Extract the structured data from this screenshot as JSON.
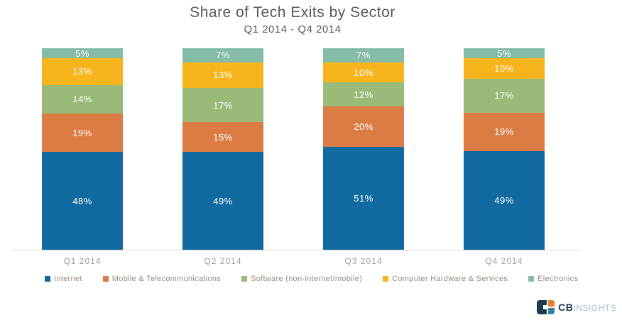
{
  "title": "Share of Tech Exits by Sector",
  "subtitle": "Q1 2014 - Q4 2014",
  "chart_data": {
    "type": "bar",
    "variant": "stacked-100-percent",
    "categories": [
      "Q1 2014",
      "Q2 2014",
      "Q3 2014",
      "Q4 2014"
    ],
    "series": [
      {
        "name": "Internet",
        "color": "#116a9f",
        "values": [
          48,
          49,
          51,
          49
        ]
      },
      {
        "name": "Mobile & Telecommunications",
        "color": "#db7c45",
        "values": [
          19,
          15,
          20,
          19
        ]
      },
      {
        "name": "Software (non-internet/mobile)",
        "color": "#9aba77",
        "values": [
          14,
          17,
          12,
          17
        ]
      },
      {
        "name": "Computer Hardware & Services",
        "color": "#f7b41c",
        "values": [
          13,
          13,
          10,
          10
        ]
      },
      {
        "name": "Electronics",
        "color": "#84bca8",
        "values": [
          5,
          7,
          7,
          5
        ]
      }
    ],
    "value_suffix": "%",
    "data_label_color": "#ffffff",
    "xlabel": "",
    "ylabel": "",
    "legend_position": "bottom",
    "grid": false
  },
  "logo": {
    "brand_bold": "CB",
    "brand_light": "INSIGHTS"
  }
}
